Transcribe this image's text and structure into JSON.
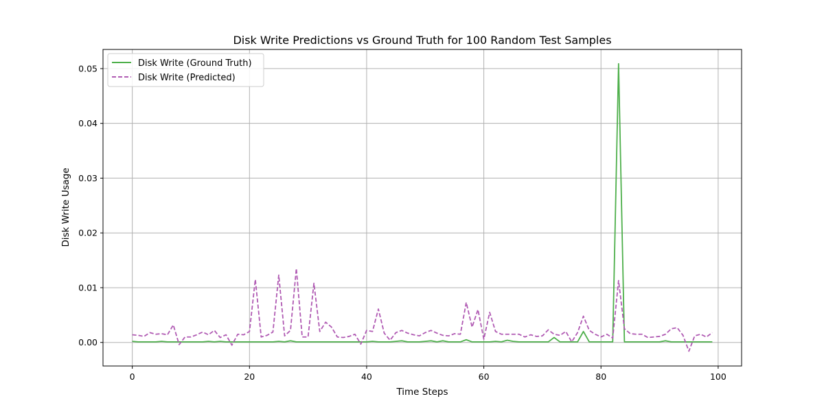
{
  "chart_data": {
    "type": "line",
    "title": "Disk Write Predictions vs Ground Truth for 100 Random Test Samples",
    "xlabel": "Time Steps",
    "ylabel": "Disk Write Usage",
    "xlim": [
      -5,
      104
    ],
    "ylim": [
      -0.0043,
      0.0535
    ],
    "xticks": [
      0,
      20,
      40,
      60,
      80,
      100
    ],
    "xtick_labels": [
      "0",
      "20",
      "40",
      "60",
      "80",
      "100"
    ],
    "yticks": [
      0.0,
      0.01,
      0.02,
      0.03,
      0.04,
      0.05
    ],
    "ytick_labels": [
      "0.00",
      "0.01",
      "0.02",
      "0.03",
      "0.04",
      "0.05"
    ],
    "grid": true,
    "legend_position": "top-left",
    "series": [
      {
        "name": "Disk Write (Ground Truth)",
        "color": "#4daf4a",
        "style": "solid",
        "values": [
          0.0002,
          0.0001,
          0.0001,
          0.0001,
          0.0001,
          0.0002,
          0.0001,
          0.0001,
          0.0001,
          0.0001,
          0.0001,
          0.0001,
          0.0001,
          0.0002,
          0.0001,
          0.0002,
          0.0001,
          0.0001,
          0.0001,
          0.0001,
          0.0001,
          0.0001,
          0.0001,
          0.0001,
          0.0001,
          0.0002,
          0.0001,
          0.0003,
          0.0001,
          0.0001,
          0.0001,
          0.0001,
          0.0001,
          0.0001,
          0.0001,
          0.0001,
          0.0001,
          0.0001,
          0.0001,
          0.0001,
          0.0001,
          0.0002,
          0.0001,
          0.0001,
          0.0001,
          0.0002,
          0.0003,
          0.0001,
          0.0001,
          0.0001,
          0.0002,
          0.0003,
          0.0001,
          0.0003,
          0.0001,
          0.0001,
          0.0001,
          0.0005,
          0.0001,
          0.0001,
          0.0001,
          0.0001,
          0.0002,
          0.0001,
          0.0004,
          0.0002,
          0.0001,
          0.0001,
          0.0001,
          0.0001,
          0.0001,
          0.0001,
          0.0009,
          0.0001,
          0.0001,
          0.0001,
          0.0001,
          0.002,
          0.0001,
          0.0001,
          0.0001,
          0.0001,
          0.0001,
          0.0509,
          0.0001,
          0.0001,
          0.0001,
          0.0001,
          0.0001,
          0.0001,
          0.0001,
          0.0003,
          0.0001,
          0.0001,
          0.0001,
          0.0001,
          0.0001,
          0.0001,
          0.0001,
          0.0001
        ]
      },
      {
        "name": "Disk Write (Predicted)",
        "color": "#b05ab3",
        "style": "dashed",
        "values": [
          0.0014,
          0.0013,
          0.0011,
          0.0018,
          0.0015,
          0.0016,
          0.0014,
          0.0032,
          -0.0004,
          0.001,
          0.001,
          0.0014,
          0.0019,
          0.0014,
          0.0022,
          0.0009,
          0.0014,
          -0.0005,
          0.0015,
          0.0014,
          0.002,
          0.0115,
          0.001,
          0.0013,
          0.0019,
          0.0123,
          0.0012,
          0.0022,
          0.0135,
          0.001,
          0.001,
          0.0108,
          0.002,
          0.0037,
          0.0028,
          0.001,
          0.0009,
          0.0011,
          0.0015,
          -0.0003,
          0.0022,
          0.002,
          0.0061,
          0.0017,
          0.0004,
          0.0018,
          0.0022,
          0.0017,
          0.0014,
          0.0012,
          0.0018,
          0.0022,
          0.0017,
          0.0013,
          0.0012,
          0.0016,
          0.0015,
          0.0073,
          0.0028,
          0.006,
          0.0006,
          0.0055,
          0.002,
          0.0015,
          0.0015,
          0.0015,
          0.0015,
          0.001,
          0.0014,
          0.0011,
          0.0012,
          0.0023,
          0.0015,
          0.0013,
          0.002,
          0.0001,
          0.0018,
          0.0048,
          0.0022,
          0.0015,
          0.001,
          0.0015,
          0.0008,
          0.0113,
          0.0025,
          0.0016,
          0.0015,
          0.0015,
          0.0009,
          0.001,
          0.0011,
          0.0015,
          0.0025,
          0.0027,
          0.0013,
          -0.0016,
          0.0012,
          0.0015,
          0.001,
          0.0018
        ]
      }
    ]
  }
}
